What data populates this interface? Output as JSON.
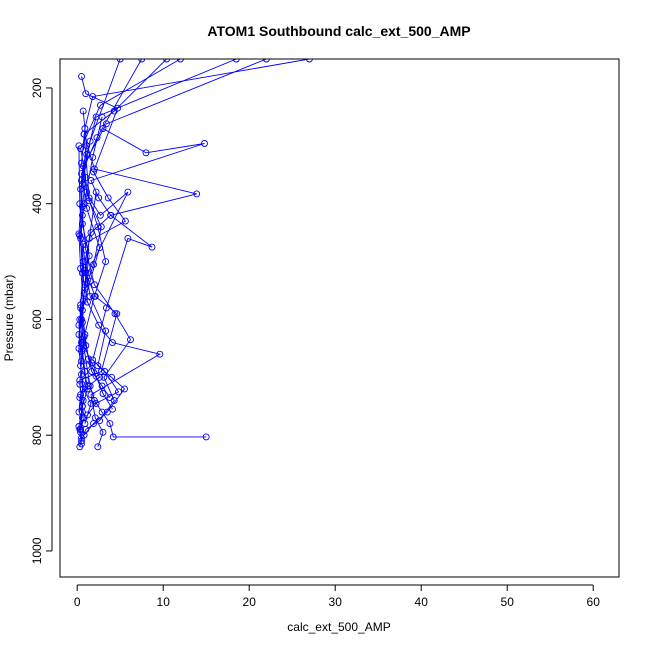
{
  "chart_data": {
    "type": "line",
    "title": "ATOM1 Southbound calc_ext_500_AMP",
    "xlabel": "calc_ext_500_AMP",
    "ylabel": "Pressure (mbar)",
    "xlim": [
      -2,
      63
    ],
    "ylim": [
      1045,
      150
    ],
    "y_reversed": true,
    "xticks": [
      0,
      10,
      20,
      30,
      40,
      50,
      60
    ],
    "yticks": [
      200,
      400,
      600,
      800,
      1000
    ],
    "marker": "open-circle",
    "grid": false,
    "legend": "none",
    "colors": {
      "series": "#0000ff",
      "axis": "#000000",
      "background": "#ffffff"
    },
    "profiles": [
      {
        "x": [
          0.3,
          0.5,
          0.4,
          0.8,
          0.6,
          1.2,
          0.9,
          0.5,
          0.4,
          0.7,
          0.3,
          0.2
        ],
        "y": [
          820,
          805,
          790,
          770,
          750,
          720,
          690,
          640,
          580,
          500,
          400,
          300
        ]
      },
      {
        "x": [
          15.0,
          4.2,
          3.8,
          2.9,
          2.0,
          1.5,
          1.1,
          0.8,
          0.5,
          0.9,
          1.4,
          2.2
        ],
        "y": [
          803,
          803,
          780,
          760,
          740,
          715,
          680,
          650,
          600,
          540,
          460,
          380
        ]
      },
      {
        "x": [
          2.4,
          3.0,
          2.1,
          1.6,
          9.6,
          4.1,
          2.5,
          1.2,
          0.6,
          0.4,
          0.8,
          1.8,
          2.9
        ],
        "y": [
          820,
          795,
          770,
          730,
          660,
          640,
          610,
          570,
          520,
          460,
          400,
          320,
          250
        ]
      },
      {
        "x": [
          0.5,
          1.0,
          2.6,
          4.3,
          3.1,
          6.2,
          4.4,
          2.0,
          1.0,
          0.6,
          0.5,
          1.1,
          0.7
        ],
        "y": [
          810,
          790,
          775,
          740,
          700,
          635,
          590,
          540,
          480,
          420,
          360,
          300,
          240
        ]
      },
      {
        "x": [
          0.8,
          1.9,
          3.5,
          5.5,
          4.0,
          2.4,
          3.3,
          1.5,
          0.9,
          1.6,
          3.9,
          13.9,
          2.0,
          0.8
        ],
        "y": [
          800,
          780,
          760,
          720,
          700,
          680,
          620,
          560,
          500,
          450,
          420,
          383,
          340,
          280
        ]
      },
      {
        "x": [
          1.2,
          2.2,
          4.8,
          3.2,
          1.8,
          3.4,
          5.9,
          8.7,
          3.9,
          2.5,
          1.6,
          14.8,
          8.0,
          3.0
        ],
        "y": [
          765,
          745,
          725,
          690,
          670,
          580,
          460,
          475,
          420,
          390,
          360,
          296,
          312,
          270
        ]
      },
      {
        "x": [
          0.4,
          0.6,
          0.3,
          2.8,
          4.6,
          2.1,
          1.0,
          0.7,
          5.6,
          3.6,
          1.9,
          4.7,
          1.0,
          0.5
        ],
        "y": [
          795,
          760,
          705,
          690,
          590,
          560,
          520,
          470,
          430,
          390,
          345,
          235,
          210,
          180
        ]
      },
      {
        "x": [
          0.2,
          0.4,
          1.3,
          2.6,
          1.7,
          0.6,
          0.3,
          1.2,
          5.9,
          2.7,
          1.4,
          0.8,
          4.3,
          10.4
        ],
        "y": [
          760,
          730,
          715,
          700,
          675,
          640,
          600,
          520,
          380,
          420,
          390,
          280,
          240,
          150
        ]
      },
      {
        "x": [
          0.9,
          1.6,
          0.7,
          0.4,
          0.8,
          2.0,
          3.3,
          2.4,
          1.1,
          0.5,
          0.9,
          1.8,
          27.0
        ],
        "y": [
          780,
          745,
          720,
          680,
          630,
          560,
          500,
          440,
          380,
          330,
          270,
          215,
          150
        ]
      },
      {
        "x": [
          0.6,
          0.3,
          1.0,
          0.5,
          0.2,
          0.9,
          1.4,
          0.6,
          0.4,
          1.1,
          2.2,
          18.5
        ],
        "y": [
          770,
          735,
          705,
          655,
          610,
          545,
          490,
          435,
          375,
          315,
          250,
          150
        ]
      },
      {
        "x": [
          3.8,
          2.9,
          1.7,
          1.0,
          0.6,
          0.8,
          1.9,
          2.8,
          1.4,
          0.7,
          3.4,
          22.0
        ],
        "y": [
          735,
          715,
          690,
          645,
          605,
          555,
          505,
          440,
          395,
          335,
          262,
          150
        ]
      },
      {
        "x": [
          0.3,
          0.7,
          0.5,
          0.2,
          0.4,
          0.8,
          0.3,
          0.6,
          1.0,
          0.4,
          2.7,
          12.0
        ],
        "y": [
          790,
          740,
          695,
          650,
          575,
          515,
          455,
          405,
          355,
          305,
          230,
          150
        ]
      },
      {
        "x": [
          4.1,
          3.0,
          2.2,
          1.3,
          0.9,
          0.6,
          1.5,
          2.6,
          1.1,
          0.5,
          2.3,
          7.5
        ],
        "y": [
          755,
          728,
          698,
          668,
          626,
          584,
          534,
          476,
          408,
          348,
          286,
          150
        ]
      },
      {
        "x": [
          0.5,
          0.2,
          0.6,
          0.3,
          0.5,
          0.2,
          0.7,
          0.4,
          0.2,
          0.6,
          1.5,
          5.0
        ],
        "y": [
          815,
          785,
          750,
          712,
          672,
          626,
          568,
          512,
          452,
          366,
          292,
          150
        ]
      }
    ]
  }
}
